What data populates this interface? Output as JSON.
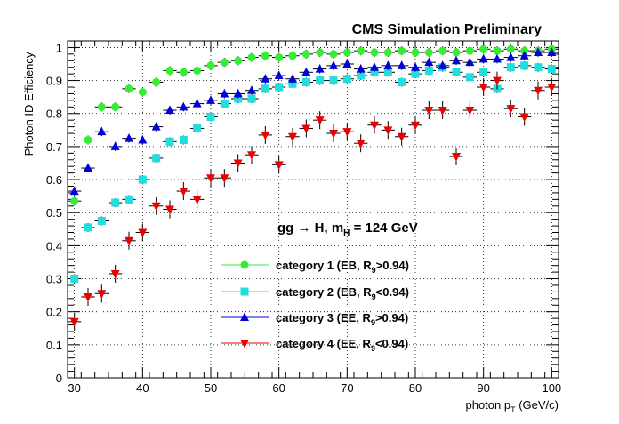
{
  "chart_data": {
    "type": "scatter",
    "title": "CMS Simulation Preliminary",
    "xlabel": "photon p",
    "xlabel_sub": "T",
    "xlabel_unit": " (GeV/c)",
    "ylabel": "Photon ID Efficiency",
    "xlim": [
      29,
      101
    ],
    "ylim": [
      0,
      1.02
    ],
    "x_ticks": [
      30,
      40,
      50,
      60,
      70,
      80,
      90,
      100
    ],
    "y_ticks": [
      0,
      0.1,
      0.2,
      0.3,
      0.4,
      0.5,
      0.6,
      0.7,
      0.8,
      0.9,
      1
    ],
    "x_tick_labels": [
      "30",
      "40",
      "50",
      "60",
      "70",
      "80",
      "90",
      "100"
    ],
    "y_tick_labels": [
      "0",
      "0.1",
      "0.2",
      "0.3",
      "0.4",
      "0.5",
      "0.6",
      "0.7",
      "0.8",
      "0.9",
      "1"
    ],
    "grid": true,
    "legend_position": "bottom-center",
    "annotation": {
      "part1": "gg → H, m",
      "sub": "H",
      "part2": " = 124 GeV"
    },
    "x": [
      30,
      32,
      34,
      36,
      38,
      40,
      42,
      44,
      46,
      48,
      50,
      52,
      54,
      56,
      58,
      60,
      62,
      64,
      66,
      68,
      70,
      72,
      74,
      76,
      78,
      80,
      82,
      84,
      86,
      88,
      90,
      92,
      94,
      96,
      98,
      100
    ],
    "series": [
      {
        "legend_prefix": "category 1 (EB, R",
        "legend_sub": "9",
        "legend_suffix": ">0.94)",
        "color": "#33ee33",
        "marker": "circle",
        "values": [
          0.535,
          0.72,
          0.82,
          0.82,
          0.875,
          0.865,
          0.895,
          0.93,
          0.925,
          0.93,
          0.945,
          0.955,
          0.96,
          0.97,
          0.975,
          0.97,
          0.975,
          0.98,
          0.985,
          0.98,
          0.985,
          0.99,
          0.985,
          0.985,
          0.99,
          0.985,
          0.985,
          0.99,
          0.985,
          0.99,
          0.995,
          0.99,
          0.995,
          0.99,
          0.99,
          0.995
        ]
      },
      {
        "legend_prefix": "category 2 (EB, R",
        "legend_sub": "9",
        "legend_suffix": "<0.94)",
        "color": "#22dddd",
        "marker": "square",
        "values": [
          0.3,
          0.455,
          0.475,
          0.53,
          0.54,
          0.6,
          0.665,
          0.715,
          0.72,
          0.755,
          0.79,
          0.83,
          0.845,
          0.845,
          0.875,
          0.88,
          0.89,
          0.895,
          0.9,
          0.9,
          0.905,
          0.915,
          0.925,
          0.925,
          0.895,
          0.92,
          0.93,
          0.94,
          0.925,
          0.91,
          0.925,
          0.875,
          0.94,
          0.945,
          0.94,
          0.935
        ]
      },
      {
        "legend_prefix": "category 3 (EE, R",
        "legend_sub": "9",
        "legend_suffix": ">0.94)",
        "color": "#0000dd",
        "marker": "triangle-up",
        "values": [
          0.565,
          0.635,
          0.745,
          0.7,
          0.725,
          0.72,
          0.76,
          0.81,
          0.82,
          0.83,
          0.84,
          0.86,
          0.86,
          0.87,
          0.905,
          0.915,
          0.905,
          0.925,
          0.935,
          0.945,
          0.95,
          0.935,
          0.94,
          0.945,
          0.945,
          0.94,
          0.955,
          0.945,
          0.96,
          0.955,
          0.965,
          0.965,
          0.97,
          0.975,
          0.985,
          0.985
        ]
      },
      {
        "legend_prefix": "category 4 (EE, R",
        "legend_sub": "9",
        "legend_suffix": "<0.94)",
        "color": "#ee0000",
        "marker": "triangle-down",
        "values": [
          0.17,
          0.245,
          0.255,
          0.315,
          0.415,
          0.44,
          0.52,
          0.51,
          0.565,
          0.54,
          0.605,
          0.605,
          0.65,
          0.675,
          0.735,
          0.645,
          0.73,
          0.755,
          0.78,
          0.74,
          0.745,
          0.71,
          0.765,
          0.75,
          0.73,
          0.765,
          0.81,
          0.81,
          0.67,
          0.81,
          0.88,
          0.9,
          0.815,
          0.79,
          0.87,
          0.88
        ]
      }
    ]
  }
}
